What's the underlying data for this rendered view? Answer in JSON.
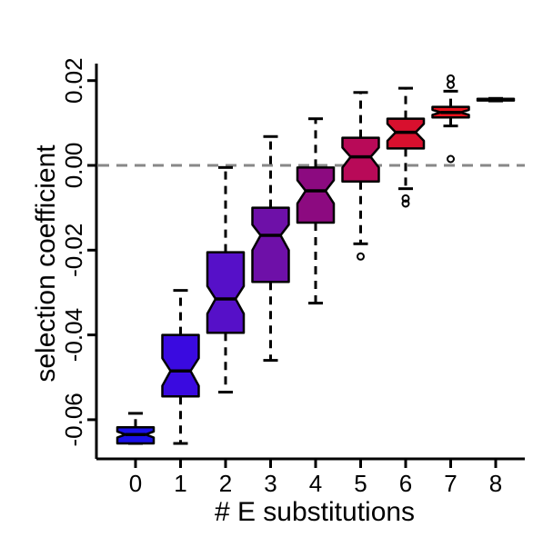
{
  "chart_data": {
    "type": "boxplot",
    "notched": true,
    "title": "",
    "xlabel": "# E substitutions",
    "ylabel": "selection coefficient",
    "categories": [
      "0",
      "1",
      "2",
      "3",
      "4",
      "5",
      "6",
      "7",
      "8"
    ],
    "yticks": [
      "-0.06",
      "-0.04",
      "-0.02",
      "0.00",
      "0.02"
    ],
    "ylim": [
      -0.066,
      0.022
    ],
    "reference_line": {
      "y": 0.0,
      "style": "dashed",
      "color": "#888888"
    },
    "grid": false,
    "legend": "none",
    "boxes": [
      {
        "category": "0",
        "whisker_low": -0.0656,
        "q1": -0.0656,
        "median": -0.0635,
        "q3": -0.0618,
        "whisker_high": -0.0585,
        "notch_low": -0.0642,
        "notch_high": -0.0628,
        "color": "#1a10e8",
        "outliers": []
      },
      {
        "category": "1",
        "whisker_low": -0.0656,
        "q1": -0.0545,
        "median": -0.0485,
        "q3": -0.04,
        "whisker_high": -0.0295,
        "notch_low": -0.052,
        "notch_high": -0.0455,
        "color": "#3a0ae0",
        "outliers": []
      },
      {
        "category": "2",
        "whisker_low": -0.0535,
        "q1": -0.0395,
        "median": -0.0315,
        "q3": -0.0205,
        "whisker_high": -0.0005,
        "notch_low": -0.035,
        "notch_high": -0.0285,
        "color": "#5610c8",
        "outliers": []
      },
      {
        "category": "3",
        "whisker_low": -0.046,
        "q1": -0.0275,
        "median": -0.0165,
        "q3": -0.01,
        "whisker_high": 0.0068,
        "notch_low": -0.02,
        "notch_high": -0.014,
        "color": "#6e10a8",
        "outliers": []
      },
      {
        "category": "4",
        "whisker_low": -0.0325,
        "q1": -0.0135,
        "median": -0.006,
        "q3": -0.0005,
        "whisker_high": 0.011,
        "notch_low": -0.009,
        "notch_high": -0.0035,
        "color": "#8c0a80",
        "outliers": []
      },
      {
        "category": "5",
        "whisker_low": -0.0185,
        "q1": -0.0038,
        "median": 0.002,
        "q3": 0.0065,
        "whisker_high": 0.0172,
        "notch_low": -0.0005,
        "notch_high": 0.0042,
        "color": "#b80a58",
        "outliers": [
          -0.0215
        ]
      },
      {
        "category": "6",
        "whisker_low": -0.0055,
        "q1": 0.004,
        "median": 0.0078,
        "q3": 0.011,
        "whisker_high": 0.0182,
        "notch_low": 0.0058,
        "notch_high": 0.0098,
        "color": "#d8102e",
        "outliers": [
          -0.0078,
          -0.009
        ]
      },
      {
        "category": "7",
        "whisker_low": 0.0093,
        "q1": 0.0113,
        "median": 0.0125,
        "q3": 0.0138,
        "whisker_high": 0.0175,
        "notch_low": 0.0119,
        "notch_high": 0.0131,
        "color": "#e8121c",
        "outliers": [
          0.0015,
          0.019,
          0.0205
        ]
      },
      {
        "category": "8",
        "whisker_low": 0.0152,
        "q1": 0.0153,
        "median": 0.0155,
        "q3": 0.0157,
        "whisker_high": 0.0158,
        "notch_low": 0.0154,
        "notch_high": 0.0156,
        "color": "#f01818",
        "outliers": []
      }
    ]
  }
}
